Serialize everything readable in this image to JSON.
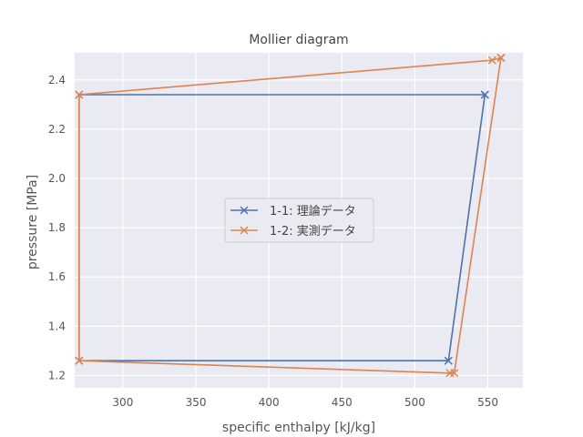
{
  "chart_data": {
    "type": "line",
    "title": "Mollier diagram",
    "xlabel": "specific enthalpy [kJ/kg]",
    "ylabel": "pressure [MPa]",
    "xlim": [
      267,
      574
    ],
    "ylim": [
      1.15,
      2.51
    ],
    "xticks": [
      300,
      350,
      400,
      450,
      500,
      550
    ],
    "yticks": [
      1.2,
      1.4,
      1.6,
      1.8,
      2.0,
      2.2,
      2.4
    ],
    "xtick_labels": [
      "300",
      "350",
      "400",
      "450",
      "500",
      "550"
    ],
    "ytick_labels": [
      "1.2",
      "1.4",
      "1.6",
      "1.8",
      "2.0",
      "2.2",
      "2.4"
    ],
    "grid": true,
    "legend_position": "center",
    "series": [
      {
        "name": "1-1: 理論データ",
        "color": "#4c72b0",
        "marker": "x",
        "points": [
          {
            "x": 548,
            "y": 2.34
          },
          {
            "x": 270,
            "y": 2.34
          },
          {
            "x": 270,
            "y": 1.26
          },
          {
            "x": 523,
            "y": 1.26
          },
          {
            "x": 548,
            "y": 2.34
          }
        ]
      },
      {
        "name": "1-2: 実測データ",
        "color": "#dd8452",
        "marker": "x",
        "points": [
          {
            "x": 559,
            "y": 2.49
          },
          {
            "x": 553,
            "y": 2.48
          },
          {
            "x": 270,
            "y": 2.34
          },
          {
            "x": 270,
            "y": 1.26
          },
          {
            "x": 524,
            "y": 1.21
          },
          {
            "x": 527,
            "y": 1.21
          },
          {
            "x": 559,
            "y": 2.49
          }
        ]
      }
    ]
  }
}
